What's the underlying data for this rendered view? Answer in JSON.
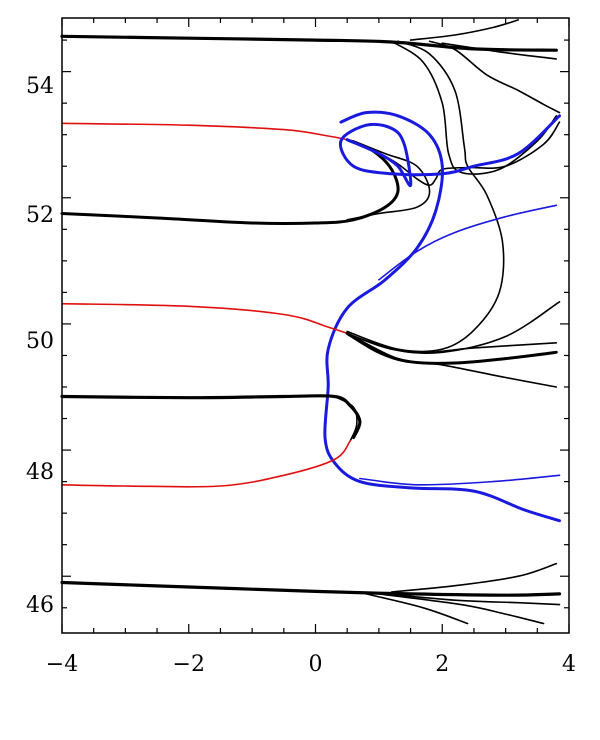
{
  "chart_data": {
    "type": "line",
    "title": "",
    "xlabel": "",
    "ylabel": "",
    "xlim": [
      -4,
      4
    ],
    "ylim": [
      45.1,
      54.85
    ],
    "grid": false,
    "legend": "none",
    "x_ticks": [
      -4,
      -2,
      0,
      2,
      4
    ],
    "x_tick_labels": [
      "−4",
      "−2",
      "0",
      "2",
      "4"
    ],
    "y_ticks": [
      46,
      48,
      50,
      52,
      54
    ],
    "y_tick_labels": [
      "46",
      "48",
      "50",
      "52",
      "54"
    ],
    "colors": {
      "black": "#000000",
      "red": "#e01010",
      "blue": "#1a1adf"
    },
    "series": [
      {
        "color": "black",
        "width": 3.2,
        "points": [
          [
            -4,
            54.56
          ],
          [
            -2,
            54.53
          ],
          [
            0,
            54.5
          ],
          [
            1.2,
            54.47
          ],
          [
            2.5,
            54.36
          ],
          [
            3.8,
            54.34
          ]
        ]
      },
      {
        "color": "black",
        "width": 1.6,
        "points": [
          [
            1.5,
            54.5
          ],
          [
            2.2,
            54.58
          ],
          [
            2.8,
            54.7
          ],
          [
            3.2,
            54.82
          ]
        ]
      },
      {
        "color": "black",
        "width": 1.6,
        "points": [
          [
            2,
            54.45
          ],
          [
            3,
            54.3
          ],
          [
            3.8,
            54.2
          ]
        ]
      },
      {
        "color": "black",
        "width": 1.6,
        "points": [
          [
            1.8,
            54.48
          ],
          [
            2.2,
            54.35
          ],
          [
            2.7,
            53.95
          ],
          [
            3.2,
            53.7
          ],
          [
            3.6,
            53.48
          ],
          [
            3.85,
            53.35
          ]
        ]
      },
      {
        "color": "black",
        "width": 1.6,
        "points": [
          [
            1.3,
            54.48
          ],
          [
            1.8,
            54.28
          ],
          [
            2.2,
            53.7
          ],
          [
            2.35,
            52.8
          ],
          [
            2.4,
            52.5
          ],
          [
            2.7,
            52.05
          ],
          [
            2.95,
            51.3
          ],
          [
            2.9,
            50.5
          ],
          [
            2.5,
            49.9
          ],
          [
            2,
            49.6
          ],
          [
            1.3,
            49.6
          ],
          [
            0.5,
            49.88
          ]
        ]
      },
      {
        "color": "black",
        "width": 1.6,
        "points": [
          [
            1.2,
            54.48
          ],
          [
            1.7,
            54.15
          ],
          [
            2.0,
            53.5
          ],
          [
            2.1,
            52.7
          ],
          [
            2.3,
            52.4
          ],
          [
            2.9,
            52.45
          ],
          [
            3.5,
            52.9
          ],
          [
            3.8,
            53.3
          ]
        ]
      },
      {
        "color": "red",
        "width": 1.6,
        "points": [
          [
            -4,
            53.18
          ],
          [
            -2,
            53.15
          ],
          [
            -0.5,
            53.08
          ],
          [
            0.2,
            52.98
          ],
          [
            0.5,
            52.92
          ]
        ]
      },
      {
        "color": "black",
        "width": 3.0,
        "points": [
          [
            0.5,
            52.92
          ],
          [
            0.9,
            52.75
          ],
          [
            1.2,
            52.45
          ],
          [
            1.3,
            52.1
          ],
          [
            1.1,
            51.85
          ],
          [
            0.6,
            51.65
          ],
          [
            0,
            51.6
          ],
          [
            -1,
            51.6
          ],
          [
            -2.5,
            51.68
          ],
          [
            -4,
            51.75
          ]
        ]
      },
      {
        "color": "black",
        "width": 1.6,
        "points": [
          [
            0.5,
            52.92
          ],
          [
            1.2,
            52.6
          ],
          [
            1.6,
            52.3
          ],
          [
            1.8,
            52.2
          ],
          [
            1.9,
            52.3
          ],
          [
            2.0,
            52.45
          ],
          [
            2.4,
            52.48
          ],
          [
            3,
            52.5
          ],
          [
            3.6,
            52.85
          ],
          [
            3.85,
            53.2
          ]
        ]
      },
      {
        "color": "black",
        "width": 1.6,
        "points": [
          [
            0.6,
            52.9
          ],
          [
            1.1,
            52.7
          ],
          [
            1.6,
            52.5
          ],
          [
            1.8,
            52.1
          ],
          [
            1.6,
            51.85
          ],
          [
            1.0,
            51.75
          ],
          [
            0.5,
            51.65
          ]
        ]
      },
      {
        "color": "blue",
        "width": 3.0,
        "points": [
          [
            0.5,
            52.92
          ],
          [
            1.0,
            52.7
          ],
          [
            1.3,
            52.5
          ],
          [
            1.5,
            52.2
          ],
          [
            1.4,
            52.85
          ],
          [
            1.2,
            53.1
          ],
          [
            0.8,
            53.15
          ],
          [
            0.4,
            52.9
          ],
          [
            0.6,
            52.5
          ],
          [
            1.2,
            52.38
          ],
          [
            2,
            52.38
          ],
          [
            2.5,
            52.5
          ],
          [
            3.2,
            52.7
          ],
          [
            3.85,
            53.3
          ]
        ]
      },
      {
        "color": "blue",
        "width": 3.0,
        "points": [
          [
            0.4,
            53.2
          ],
          [
            0.8,
            53.35
          ],
          [
            1.3,
            53.3
          ],
          [
            1.8,
            53.0
          ],
          [
            2.0,
            52.5
          ],
          [
            1.9,
            51.8
          ],
          [
            1.6,
            51.2
          ],
          [
            1.1,
            50.7
          ],
          [
            0.5,
            50.25
          ],
          [
            0.2,
            49.6
          ],
          [
            0.2,
            49.0
          ],
          [
            0.15,
            48.2
          ],
          [
            0.3,
            47.8
          ],
          [
            0.7,
            47.5
          ],
          [
            1.5,
            47.4
          ],
          [
            2.5,
            47.35
          ],
          [
            3.3,
            47.05
          ],
          [
            3.85,
            46.88
          ]
        ]
      },
      {
        "color": "blue",
        "width": 1.6,
        "points": [
          [
            1.0,
            50.7
          ],
          [
            1.6,
            51.15
          ],
          [
            2.2,
            51.45
          ],
          [
            3.0,
            51.7
          ],
          [
            3.8,
            51.88
          ]
        ]
      },
      {
        "color": "red",
        "width": 1.6,
        "points": [
          [
            -4,
            50.32
          ],
          [
            -2,
            50.28
          ],
          [
            -0.5,
            50.15
          ],
          [
            0.2,
            49.95
          ],
          [
            0.5,
            49.85
          ]
        ]
      },
      {
        "color": "black",
        "width": 1.6,
        "points": [
          [
            0.5,
            49.85
          ],
          [
            1.2,
            49.6
          ],
          [
            2.0,
            49.55
          ],
          [
            3.0,
            49.8
          ],
          [
            3.85,
            50.35
          ]
        ]
      },
      {
        "color": "black",
        "width": 3.0,
        "points": [
          [
            0.5,
            49.85
          ],
          [
            1.0,
            49.55
          ],
          [
            1.5,
            49.4
          ],
          [
            2.2,
            49.38
          ],
          [
            3,
            49.45
          ],
          [
            3.8,
            49.55
          ]
        ]
      },
      {
        "color": "black",
        "width": 1.6,
        "points": [
          [
            0.6,
            49.8
          ],
          [
            1.3,
            49.45
          ],
          [
            2.0,
            49.35
          ],
          [
            3.0,
            49.15
          ],
          [
            3.8,
            49.0
          ]
        ]
      },
      {
        "color": "black",
        "width": 1.6,
        "points": [
          [
            0.6,
            49.8
          ],
          [
            1.5,
            49.55
          ],
          [
            2.5,
            49.62
          ],
          [
            3.8,
            49.7
          ]
        ]
      },
      {
        "color": "black",
        "width": 3.2,
        "points": [
          [
            -4,
            48.85
          ],
          [
            -2,
            48.83
          ],
          [
            -0.5,
            48.85
          ],
          [
            0.3,
            48.85
          ],
          [
            0.55,
            48.7
          ],
          [
            0.7,
            48.45
          ],
          [
            0.6,
            48.2
          ]
        ]
      },
      {
        "color": "black",
        "width": 1.6,
        "points": [
          [
            0.3,
            48.85
          ],
          [
            0.6,
            48.68
          ],
          [
            0.65,
            48.4
          ],
          [
            0.55,
            48.15
          ]
        ]
      },
      {
        "color": "red",
        "width": 1.6,
        "points": [
          [
            0.55,
            48.15
          ],
          [
            0.3,
            47.85
          ],
          [
            -0.5,
            47.6
          ],
          [
            -1.5,
            47.43
          ],
          [
            -3,
            47.43
          ],
          [
            -4,
            47.45
          ]
        ]
      },
      {
        "color": "blue",
        "width": 1.6,
        "points": [
          [
            0.7,
            47.55
          ],
          [
            1.6,
            47.45
          ],
          [
            2.8,
            47.5
          ],
          [
            3.85,
            47.6
          ]
        ]
      },
      {
        "color": "black",
        "width": 3.2,
        "points": [
          [
            -4,
            45.9
          ],
          [
            -2,
            45.83
          ],
          [
            0,
            45.76
          ],
          [
            1.5,
            45.72
          ],
          [
            3,
            45.7
          ],
          [
            3.85,
            45.72
          ]
        ]
      },
      {
        "color": "black",
        "width": 1.6,
        "points": [
          [
            1.2,
            45.75
          ],
          [
            2.2,
            45.85
          ],
          [
            3.2,
            46.0
          ],
          [
            3.8,
            46.2
          ]
        ]
      },
      {
        "color": "black",
        "width": 1.6,
        "points": [
          [
            1.0,
            45.73
          ],
          [
            2.2,
            45.62
          ],
          [
            3.2,
            45.58
          ],
          [
            3.85,
            45.55
          ]
        ]
      },
      {
        "color": "black",
        "width": 1.6,
        "points": [
          [
            0.8,
            45.72
          ],
          [
            1.7,
            45.5
          ],
          [
            2.4,
            45.25
          ]
        ]
      },
      {
        "color": "black",
        "width": 1.6,
        "points": [
          [
            1.0,
            45.72
          ],
          [
            2.3,
            45.55
          ],
          [
            3.0,
            45.4
          ],
          [
            3.6,
            45.25
          ]
        ]
      }
    ]
  }
}
